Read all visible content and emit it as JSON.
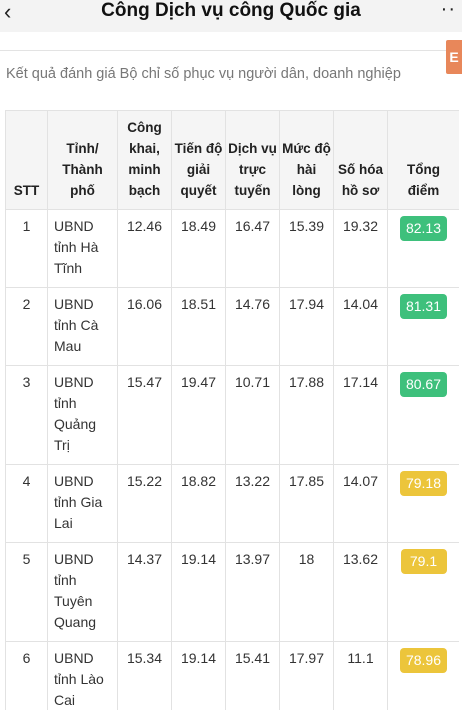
{
  "header": {
    "title": "Công Dịch vụ công Quốc gia",
    "back_glyph": "‹",
    "more_glyph": "··"
  },
  "side_tab_label": "E",
  "subtitle": "Kết quả đánh giá Bộ chỉ số phục vụ người dân, doanh nghiệp",
  "table": {
    "headers": [
      "STT",
      "Tỉnh/ Thành phố",
      "Công khai, minh bạch",
      "Tiến độ giải quyết",
      "Dịch vụ trực tuyến",
      "Mức độ hài lòng",
      "Số hóa hồ sơ",
      "Tổng điểm"
    ],
    "rows": [
      {
        "stt": "1",
        "province": "UBND tỉnh Hà Tĩnh",
        "cong_khai": "12.46",
        "tien_do": "18.49",
        "dich_vu": "16.47",
        "muc_do": "15.39",
        "so_hoa": "19.32",
        "tong_diem": "82.13",
        "badge_color": "#3ec07c"
      },
      {
        "stt": "2",
        "province": "UBND tỉnh Cà Mau",
        "cong_khai": "16.06",
        "tien_do": "18.51",
        "dich_vu": "14.76",
        "muc_do": "17.94",
        "so_hoa": "14.04",
        "tong_diem": "81.31",
        "badge_color": "#3ec07c"
      },
      {
        "stt": "3",
        "province": "UBND tỉnh Quảng Trị",
        "cong_khai": "15.47",
        "tien_do": "19.47",
        "dich_vu": "10.71",
        "muc_do": "17.88",
        "so_hoa": "17.14",
        "tong_diem": "80.67",
        "badge_color": "#3ec07c"
      },
      {
        "stt": "4",
        "province": "UBND tỉnh Gia Lai",
        "cong_khai": "15.22",
        "tien_do": "18.82",
        "dich_vu": "13.22",
        "muc_do": "17.85",
        "so_hoa": "14.07",
        "tong_diem": "79.18",
        "badge_color": "#ecc53b"
      },
      {
        "stt": "5",
        "province": "UBND tỉnh Tuyên Quang",
        "cong_khai": "14.37",
        "tien_do": "19.14",
        "dich_vu": "13.97",
        "muc_do": "18",
        "so_hoa": "13.62",
        "tong_diem": "79.1",
        "badge_color": "#ecc53b"
      },
      {
        "stt": "6",
        "province": "UBND tỉnh Lào Cai",
        "cong_khai": "15.34",
        "tien_do": "19.14",
        "dich_vu": "15.41",
        "muc_do": "17.97",
        "so_hoa": "11.1",
        "tong_diem": "78.96",
        "badge_color": "#ecc53b"
      }
    ]
  }
}
